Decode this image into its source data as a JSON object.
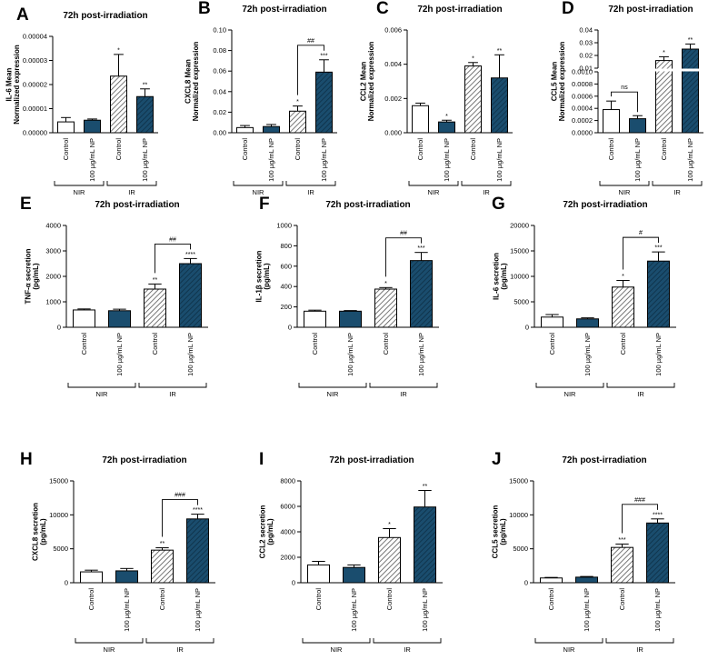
{
  "colors": {
    "np": "#1a4d6e",
    "control": "#ffffff",
    "hatch_line": "#555555"
  },
  "chart_data": [
    {
      "type": "bar",
      "letter": "A",
      "title": "72h post-irradiation",
      "ylabel": [
        "IL-6 Mean",
        "Normalized expression"
      ],
      "ylim": [
        0,
        4e-05
      ],
      "yticks": [
        0,
        1e-05,
        2e-05,
        3e-05,
        4e-05
      ],
      "ytick_labels": [
        "0.00000",
        "0.00001",
        "0.00002",
        "0.00003",
        "0.00004"
      ],
      "categories": [
        "Control",
        "100 µg/mL NP",
        "Control",
        "100 µg/mL NP"
      ],
      "values": [
        4.5e-06,
        5.2e-06,
        2.35e-05,
        1.5e-05
      ],
      "errors": [
        1.8e-06,
        5e-07,
        9e-06,
        3.2e-06
      ],
      "sig": [
        "",
        "",
        "*",
        "**"
      ],
      "groups": [
        "NIR",
        "IR"
      ]
    },
    {
      "type": "bar",
      "letter": "B",
      "title": "72h post-irradiation",
      "ylabel": [
        "CXCL8 Mean",
        "Normalized expression"
      ],
      "ylim": [
        0,
        0.1
      ],
      "yticks": [
        0,
        0.02,
        0.04,
        0.06,
        0.08,
        0.1
      ],
      "ytick_labels": [
        "0.00",
        "0.02",
        "0.04",
        "0.06",
        "0.08",
        "0.10"
      ],
      "categories": [
        "Control",
        "100 µg/mL NP",
        "Control",
        "100 µg/mL NP"
      ],
      "values": [
        0.005,
        0.006,
        0.021,
        0.059
      ],
      "errors": [
        0.002,
        0.002,
        0.005,
        0.012
      ],
      "sig": [
        "",
        "",
        "*",
        "***"
      ],
      "bracket": "##",
      "groups": [
        "NIR",
        "IR"
      ]
    },
    {
      "type": "bar",
      "letter": "C",
      "title": "72h post-irradiation",
      "ylabel": [
        "CCL2 Mean",
        "Normalized expression"
      ],
      "ylim": [
        0,
        0.006
      ],
      "yticks": [
        0,
        0.002,
        0.004,
        0.006
      ],
      "ytick_labels": [
        "0.000",
        "0.002",
        "0.004",
        "0.006"
      ],
      "categories": [
        "Control",
        "100 µg/mL NP",
        "Control",
        "100 µg/mL NP"
      ],
      "values": [
        0.00158,
        0.00063,
        0.0039,
        0.0032
      ],
      "errors": [
        0.00015,
        0.0001,
        0.0002,
        0.00135
      ],
      "sig": [
        "",
        "*",
        "*",
        "**"
      ],
      "groups": [
        "NIR",
        "IR"
      ]
    },
    {
      "type": "bar",
      "letter": "D",
      "title": "72h post-irradiation",
      "ylabel": [
        "CCL5 Mean",
        "Normalized expression"
      ],
      "broken_axis": true,
      "upper_ylim": [
        0.01,
        0.04
      ],
      "upper_yticks": [
        0.01,
        0.02,
        0.03,
        0.04
      ],
      "upper_ytick_labels": [
        "0.01",
        "0.02",
        "0.03",
        "0.04"
      ],
      "lower_ylim": [
        0,
        0.001
      ],
      "lower_yticks": [
        0,
        0.0002,
        0.0004,
        0.0006,
        0.0008,
        0.001
      ],
      "lower_ytick_labels": [
        "0.0000",
        "0.0002",
        "0.0004",
        "0.0006",
        "0.0008",
        "0.0010"
      ],
      "categories": [
        "Control",
        "100 µg/mL NP",
        "Control",
        "100 µg/mL NP"
      ],
      "values": [
        0.00038,
        0.00023,
        0.016,
        0.025
      ],
      "errors": [
        0.00014,
        5e-05,
        0.003,
        0.004
      ],
      "sig": [
        "",
        "",
        "*",
        "**"
      ],
      "bracket_ns": "ns",
      "groups": [
        "NIR",
        "IR"
      ]
    },
    {
      "type": "bar",
      "letter": "E",
      "title": "72h post-irradiation",
      "ylabel": [
        "TNF-α secretion",
        "(pg/mL)"
      ],
      "ylim": [
        0,
        4000
      ],
      "yticks": [
        0,
        1000,
        2000,
        3000,
        4000
      ],
      "ytick_labels": [
        "0",
        "1000",
        "2000",
        "3000",
        "4000"
      ],
      "categories": [
        "Control",
        "100 µg/mL NP",
        "Control",
        "100 µg/mL NP"
      ],
      "values": [
        680,
        650,
        1500,
        2500
      ],
      "errors": [
        40,
        60,
        200,
        200
      ],
      "sig": [
        "",
        "",
        "**",
        "****"
      ],
      "bracket": "##",
      "groups": [
        "NIR",
        "IR"
      ]
    },
    {
      "type": "bar",
      "letter": "F",
      "title": "72h post-irradiation",
      "ylabel": [
        "IL-1β secretion",
        "(pg/mL)"
      ],
      "ylim": [
        0,
        1000
      ],
      "yticks": [
        0,
        200,
        400,
        600,
        800,
        1000
      ],
      "ytick_labels": [
        "0",
        "200",
        "400",
        "600",
        "800",
        "1000"
      ],
      "categories": [
        "Control",
        "100 µg/mL NP",
        "Control",
        "100 µg/mL NP"
      ],
      "values": [
        158,
        158,
        375,
        655
      ],
      "errors": [
        10,
        6,
        15,
        80
      ],
      "sig": [
        "",
        "",
        "*",
        "***"
      ],
      "bracket": "##",
      "groups": [
        "NIR",
        "IR"
      ]
    },
    {
      "type": "bar",
      "letter": "G",
      "title": "72h post-irradiation",
      "ylabel": [
        "IL-6 secretion",
        "(pg/mL)"
      ],
      "ylim": [
        0,
        20000
      ],
      "yticks": [
        0,
        5000,
        10000,
        15000,
        20000
      ],
      "ytick_labels": [
        "0",
        "5000",
        "10000",
        "15000",
        "20000"
      ],
      "categories": [
        "Control",
        "100 µg/mL NP",
        "Control",
        "100 µg/mL NP"
      ],
      "values": [
        2000,
        1650,
        7900,
        13000
      ],
      "errors": [
        500,
        200,
        1300,
        1800
      ],
      "sig": [
        "",
        "",
        "*",
        "***"
      ],
      "bracket": "#",
      "groups": [
        "NIR",
        "IR"
      ]
    },
    {
      "type": "bar",
      "letter": "H",
      "title": "72h post-irradiation",
      "ylabel": [
        "CXCL8 secretion",
        "(pg/mL)"
      ],
      "ylim": [
        0,
        15000
      ],
      "yticks": [
        0,
        5000,
        10000,
        15000
      ],
      "ytick_labels": [
        "0",
        "5000",
        "10000",
        "15000"
      ],
      "categories": [
        "Control",
        "100 µg/mL NP",
        "Control",
        "100 µg/mL NP"
      ],
      "values": [
        1600,
        1750,
        4800,
        9400
      ],
      "errors": [
        250,
        350,
        350,
        700
      ],
      "sig": [
        "",
        "",
        "**",
        "****"
      ],
      "bracket": "###",
      "groups": [
        "NIR",
        "IR"
      ]
    },
    {
      "type": "bar",
      "letter": "I",
      "title": "72h post-irradiation",
      "ylabel": [
        "CCL2 secretion",
        "(pg/mL)"
      ],
      "ylim": [
        0,
        8000
      ],
      "yticks": [
        0,
        2000,
        4000,
        6000,
        8000
      ],
      "ytick_labels": [
        "0",
        "2000",
        "4000",
        "6000",
        "8000"
      ],
      "categories": [
        "Control",
        "100 µg/mL NP",
        "Control",
        "100 µg/mL NP"
      ],
      "values": [
        1400,
        1200,
        3550,
        5950
      ],
      "errors": [
        280,
        200,
        700,
        1300
      ],
      "sig": [
        "",
        "",
        "*",
        "**"
      ],
      "groups": [
        "NIR",
        "IR"
      ]
    },
    {
      "type": "bar",
      "letter": "J",
      "title": "72h post-irradiation",
      "ylabel": [
        "CCL5 secretion",
        "(pg/mL)"
      ],
      "ylim": [
        0,
        15000
      ],
      "yticks": [
        0,
        5000,
        10000,
        15000
      ],
      "ytick_labels": [
        "0",
        "5000",
        "10000",
        "15000"
      ],
      "categories": [
        "Control",
        "100 µg/mL NP",
        "Control",
        "100 µg/mL NP"
      ],
      "values": [
        700,
        820,
        5200,
        8800
      ],
      "errors": [
        80,
        100,
        500,
        600
      ],
      "sig": [
        "",
        "",
        "***",
        "****"
      ],
      "bracket": "###",
      "groups": [
        "NIR",
        "IR"
      ]
    }
  ]
}
